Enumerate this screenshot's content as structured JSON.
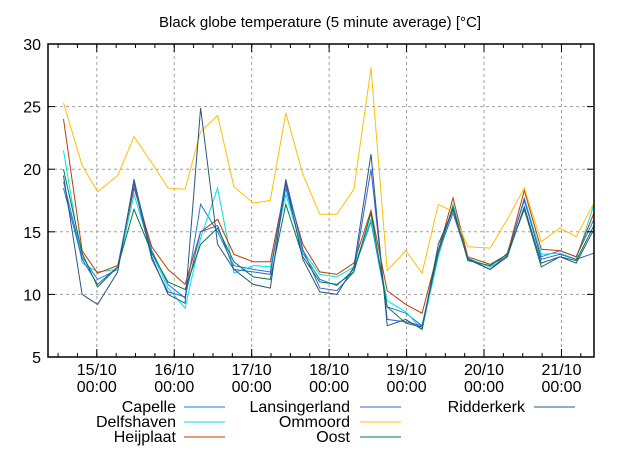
{
  "chart_data": {
    "type": "line",
    "title": "Black globe temperature (5 minute average) [°C]",
    "xlabel": "",
    "ylabel": "",
    "ylim": [
      5,
      30
    ],
    "xlim_days": [
      -0.63,
      6.42
    ],
    "grid": true,
    "legend_placement": "bottom",
    "yticks": [
      5,
      10,
      15,
      20,
      25,
      30
    ],
    "xticks": [
      {
        "day": 0,
        "label1": "15/10",
        "label2": "00:00"
      },
      {
        "day": 1,
        "label1": "16/10",
        "label2": "00:00"
      },
      {
        "day": 2,
        "label1": "17/10",
        "label2": "00:00"
      },
      {
        "day": 3,
        "label1": "18/10",
        "label2": "00:00"
      },
      {
        "day": 4,
        "label1": "19/10",
        "label2": "00:00"
      },
      {
        "day": 5,
        "label1": "20/10",
        "label2": "00:00"
      },
      {
        "day": 6,
        "label1": "21/10",
        "label2": "00:00"
      }
    ],
    "x_days": [
      -0.43,
      -0.19,
      0.01,
      0.27,
      0.48,
      0.71,
      0.92,
      1.14,
      1.34,
      1.56,
      1.77,
      2.02,
      2.24,
      2.44,
      2.66,
      2.88,
      3.1,
      3.32,
      3.54,
      3.75,
      3.99,
      4.2,
      4.41,
      4.6,
      4.79,
      5.08,
      5.3,
      5.52,
      5.74,
      5.98,
      6.19,
      6.42
    ],
    "series": [
      {
        "name": "Capelle",
        "color": "#1a7fe0",
        "values": [
          19.0,
          13.0,
          11.2,
          12.0,
          19.0,
          13.5,
          10.8,
          9.7,
          17.2,
          15.0,
          12.3,
          12.0,
          11.8,
          18.5,
          13.3,
          11.2,
          10.7,
          12.0,
          15.8,
          9.0,
          8.5,
          7.5,
          13.5,
          16.8,
          12.8,
          12.0,
          13.3,
          17.5,
          13.0,
          13.5,
          13.0,
          16.0
        ]
      },
      {
        "name": "Delfshaven",
        "color": "#00e0e8",
        "values": [
          21.5,
          12.5,
          11.8,
          12.0,
          18.0,
          13.3,
          10.5,
          8.9,
          14.5,
          18.5,
          11.7,
          12.3,
          12.2,
          18.0,
          13.5,
          11.6,
          11.4,
          12.2,
          16.0,
          9.5,
          8.6,
          7.2,
          13.0,
          17.2,
          12.9,
          12.2,
          13.0,
          17.7,
          13.2,
          13.3,
          12.8,
          17.2
        ]
      },
      {
        "name": "Heijplaat",
        "color": "#c03c00",
        "values": [
          24.0,
          13.5,
          11.7,
          12.3,
          18.5,
          13.8,
          12.0,
          10.8,
          15.0,
          16.0,
          13.2,
          12.6,
          12.6,
          18.8,
          14.0,
          11.8,
          11.6,
          12.5,
          16.7,
          10.3,
          9.2,
          8.5,
          13.5,
          17.7,
          13.0,
          12.4,
          13.2,
          18.3,
          13.6,
          13.5,
          13.0,
          16.5
        ]
      },
      {
        "name": "Lansingerland",
        "color": "#3c5fd0",
        "values": [
          18.5,
          12.8,
          10.8,
          12.2,
          18.8,
          12.8,
          10.2,
          9.8,
          15.0,
          15.5,
          12.0,
          11.8,
          11.6,
          19.2,
          13.6,
          10.5,
          10.3,
          11.8,
          20.0,
          8.0,
          7.8,
          7.5,
          13.3,
          16.5,
          12.9,
          12.0,
          13.1,
          17.6,
          12.8,
          13.2,
          12.8,
          13.3
        ]
      },
      {
        "name": "Ommoord",
        "color": "#ffbf00",
        "values": [
          25.3,
          20.3,
          18.2,
          19.5,
          22.6,
          20.5,
          18.5,
          18.4,
          23.0,
          24.3,
          18.6,
          17.3,
          17.5,
          24.5,
          19.6,
          16.4,
          16.4,
          18.4,
          28.1,
          11.9,
          13.5,
          11.7,
          17.2,
          16.6,
          13.8,
          13.7,
          16.0,
          18.5,
          14.2,
          15.3,
          14.6,
          17.3
        ]
      },
      {
        "name": "Oost",
        "color": "#007a48",
        "values": [
          20.0,
          13.3,
          10.6,
          12.2,
          16.8,
          13.3,
          11.0,
          10.4,
          14.0,
          15.3,
          12.6,
          11.4,
          11.2,
          17.2,
          13.0,
          11.0,
          10.8,
          11.8,
          16.5,
          9.0,
          7.7,
          7.4,
          13.5,
          17.0,
          12.7,
          12.3,
          13.2,
          16.8,
          12.2,
          13.0,
          12.7,
          15.5
        ]
      },
      {
        "name": "Ridderkerk",
        "color": "#27587f",
        "values": [
          19.5,
          10.0,
          9.2,
          11.8,
          19.2,
          13.0,
          10.0,
          9.3,
          24.9,
          14.0,
          12.0,
          10.8,
          10.5,
          19.0,
          12.8,
          10.2,
          10.0,
          12.2,
          21.2,
          7.5,
          8.0,
          7.2,
          14.0,
          16.8,
          12.8,
          12.0,
          13.0,
          17.0,
          12.5,
          13.0,
          12.5,
          15.2
        ]
      }
    ]
  }
}
